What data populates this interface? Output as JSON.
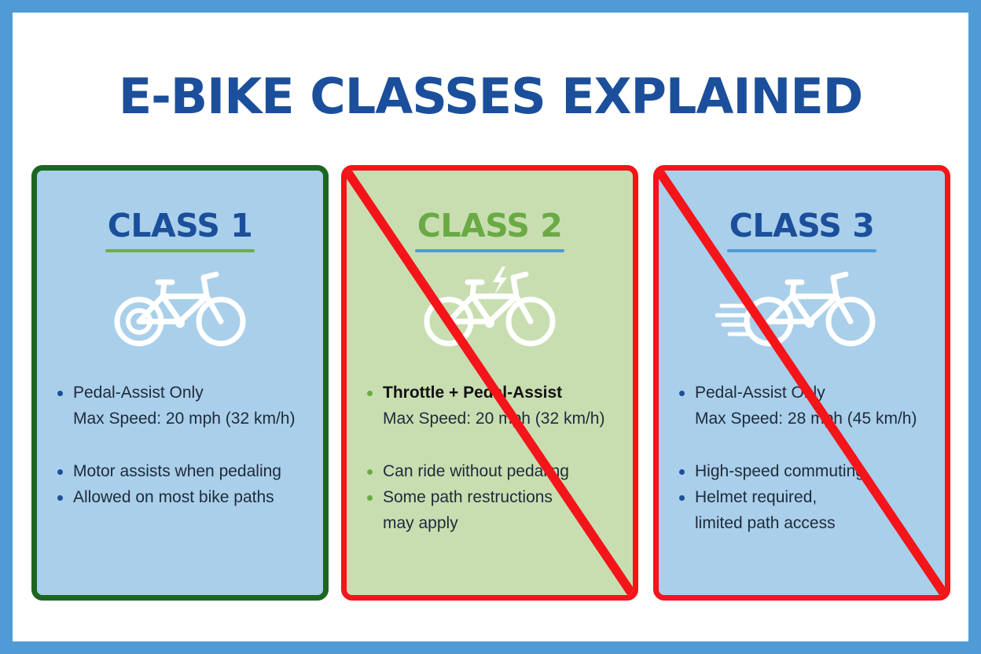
{
  "title": "E-BIKE CLASSES EXPLAINED",
  "cards": [
    {
      "title": "CLASS 1",
      "icon": "bicycle-icon",
      "crossed_out": false,
      "bullets": [
        {
          "line1": "Pedal-Assist Only",
          "line2": "Max Speed: 20 mph (32 km/h)"
        },
        {
          "line1": "Motor assists when pedaling",
          "line2": ""
        },
        {
          "line1": "Allowed on most bike paths",
          "line2": ""
        }
      ]
    },
    {
      "title": "CLASS 2",
      "icon": "electric-bicycle-icon",
      "crossed_out": true,
      "bullets": [
        {
          "line1": "Throttle + Pedal-Assist",
          "line2": "Max Speed: 20 mph (32 km/h)"
        },
        {
          "line1": "Can ride without pedaling",
          "line2": ""
        },
        {
          "line1": "Some path restructions",
          "line2": "may apply"
        }
      ]
    },
    {
      "title": "CLASS 3",
      "icon": "fast-bicycle-icon",
      "crossed_out": true,
      "bullets": [
        {
          "line1": "Pedal-Assist Only",
          "line2": "Max Speed: 28 mph (45 km/h)"
        },
        {
          "line1": "High-speed commuting",
          "line2": ""
        },
        {
          "line1": "Helmet required,",
          "line2": "limited path access"
        }
      ]
    }
  ],
  "colors": {
    "frame": "#4f9bd6",
    "title": "#1b4f9b",
    "class1_border": "#1b6620",
    "cross_red": "#f4141a",
    "class2_bg": "#c8deb1",
    "card_blue_bg": "#a9cfea"
  }
}
